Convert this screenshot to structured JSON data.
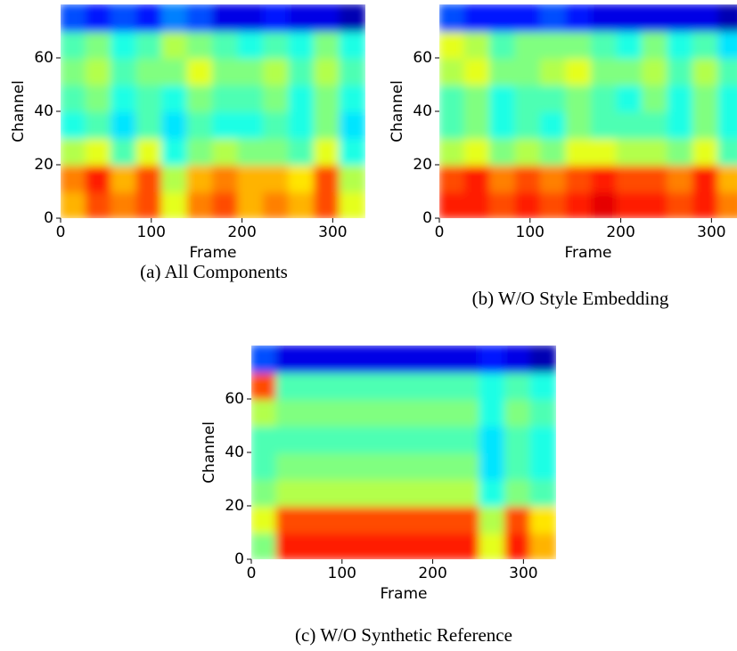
{
  "chart_data": [
    {
      "type": "heatmap",
      "caption": "(a) All Components",
      "xlabel": "Frame",
      "ylabel": "Channel",
      "colormap": "jet",
      "xlim": [
        0,
        336
      ],
      "ylim": [
        0,
        80
      ],
      "xticks": [
        0,
        100,
        200,
        300
      ],
      "yticks": [
        0,
        20,
        40,
        60
      ],
      "values": [
        [
          0.7,
          0.8,
          0.75,
          0.8,
          0.6,
          0.75,
          0.8,
          0.7,
          0.75,
          0.7,
          0.8,
          0.6
        ],
        [
          0.75,
          0.85,
          0.7,
          0.8,
          0.55,
          0.7,
          0.75,
          0.7,
          0.7,
          0.65,
          0.8,
          0.55
        ],
        [
          0.55,
          0.6,
          0.45,
          0.6,
          0.4,
          0.5,
          0.55,
          0.5,
          0.5,
          0.45,
          0.6,
          0.4
        ],
        [
          0.4,
          0.45,
          0.35,
          0.45,
          0.35,
          0.45,
          0.4,
          0.4,
          0.45,
          0.4,
          0.5,
          0.35
        ],
        [
          0.45,
          0.5,
          0.4,
          0.45,
          0.4,
          0.5,
          0.45,
          0.45,
          0.5,
          0.4,
          0.5,
          0.4
        ],
        [
          0.5,
          0.55,
          0.45,
          0.5,
          0.5,
          0.6,
          0.5,
          0.5,
          0.55,
          0.45,
          0.55,
          0.45
        ],
        [
          0.45,
          0.5,
          0.4,
          0.45,
          0.55,
          0.5,
          0.45,
          0.4,
          0.45,
          0.4,
          0.5,
          0.4
        ],
        [
          0.2,
          0.15,
          0.2,
          0.15,
          0.25,
          0.2,
          0.1,
          0.1,
          0.15,
          0.1,
          0.1,
          0.05
        ]
      ]
    },
    {
      "type": "heatmap",
      "caption": "(b) W/O Style Embedding",
      "xlabel": "Frame",
      "ylabel": "Channel",
      "colormap": "jet",
      "xlim": [
        0,
        336
      ],
      "ylim": [
        0,
        80
      ],
      "xticks": [
        0,
        100,
        200,
        300
      ],
      "yticks": [
        0,
        20,
        40,
        60
      ],
      "values": [
        [
          0.85,
          0.85,
          0.8,
          0.85,
          0.8,
          0.85,
          0.9,
          0.85,
          0.85,
          0.8,
          0.85,
          0.75
        ],
        [
          0.8,
          0.85,
          0.75,
          0.8,
          0.75,
          0.8,
          0.85,
          0.8,
          0.8,
          0.75,
          0.85,
          0.7
        ],
        [
          0.55,
          0.6,
          0.5,
          0.55,
          0.5,
          0.6,
          0.6,
          0.55,
          0.55,
          0.5,
          0.6,
          0.45
        ],
        [
          0.45,
          0.5,
          0.4,
          0.45,
          0.4,
          0.5,
          0.45,
          0.45,
          0.45,
          0.4,
          0.5,
          0.4
        ],
        [
          0.45,
          0.5,
          0.4,
          0.45,
          0.45,
          0.5,
          0.45,
          0.4,
          0.5,
          0.4,
          0.5,
          0.4
        ],
        [
          0.55,
          0.6,
          0.5,
          0.5,
          0.55,
          0.6,
          0.5,
          0.5,
          0.55,
          0.45,
          0.55,
          0.45
        ],
        [
          0.6,
          0.55,
          0.45,
          0.5,
          0.5,
          0.5,
          0.45,
          0.4,
          0.5,
          0.4,
          0.45,
          0.35
        ],
        [
          0.2,
          0.15,
          0.15,
          0.15,
          0.2,
          0.15,
          0.1,
          0.1,
          0.1,
          0.1,
          0.1,
          0.05
        ]
      ]
    },
    {
      "type": "heatmap",
      "caption": "(c) W/O Synthetic Reference",
      "xlabel": "Frame",
      "ylabel": "Channel",
      "colormap": "jet",
      "xlim": [
        0,
        336
      ],
      "ylim": [
        0,
        80
      ],
      "xticks": [
        0,
        100,
        200,
        300
      ],
      "yticks": [
        0,
        20,
        40,
        60
      ],
      "values": [
        [
          0.5,
          0.85,
          0.85,
          0.85,
          0.85,
          0.85,
          0.85,
          0.85,
          0.85,
          0.6,
          0.85,
          0.7
        ],
        [
          0.6,
          0.8,
          0.8,
          0.8,
          0.8,
          0.8,
          0.8,
          0.8,
          0.8,
          0.55,
          0.8,
          0.65
        ],
        [
          0.5,
          0.55,
          0.55,
          0.55,
          0.55,
          0.55,
          0.55,
          0.55,
          0.55,
          0.4,
          0.5,
          0.45
        ],
        [
          0.45,
          0.5,
          0.5,
          0.5,
          0.5,
          0.5,
          0.5,
          0.5,
          0.5,
          0.35,
          0.45,
          0.4
        ],
        [
          0.45,
          0.45,
          0.45,
          0.45,
          0.45,
          0.45,
          0.45,
          0.45,
          0.45,
          0.35,
          0.45,
          0.4
        ],
        [
          0.55,
          0.5,
          0.5,
          0.5,
          0.5,
          0.5,
          0.5,
          0.5,
          0.5,
          0.4,
          0.5,
          0.45
        ],
        [
          0.8,
          0.45,
          0.45,
          0.45,
          0.45,
          0.45,
          0.45,
          0.45,
          0.45,
          0.4,
          0.45,
          0.4
        ],
        [
          0.2,
          0.1,
          0.1,
          0.1,
          0.1,
          0.1,
          0.1,
          0.1,
          0.1,
          0.15,
          0.1,
          0.05
        ]
      ]
    }
  ]
}
